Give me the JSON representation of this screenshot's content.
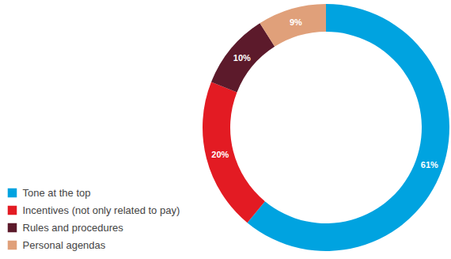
{
  "chart_data": {
    "type": "donut",
    "categories": [
      "Tone at the top",
      "Incentives (not only related to pay)",
      "Rules and procedures",
      "Personal agendas"
    ],
    "values": [
      61,
      20,
      10,
      9
    ],
    "value_labels": [
      "61%",
      "20%",
      "10%",
      "9%"
    ],
    "colors": [
      "#00a3e0",
      "#e31b23",
      "#5c1a2b",
      "#e0a07a"
    ],
    "data_labels": true,
    "legend": "bottom-left"
  }
}
